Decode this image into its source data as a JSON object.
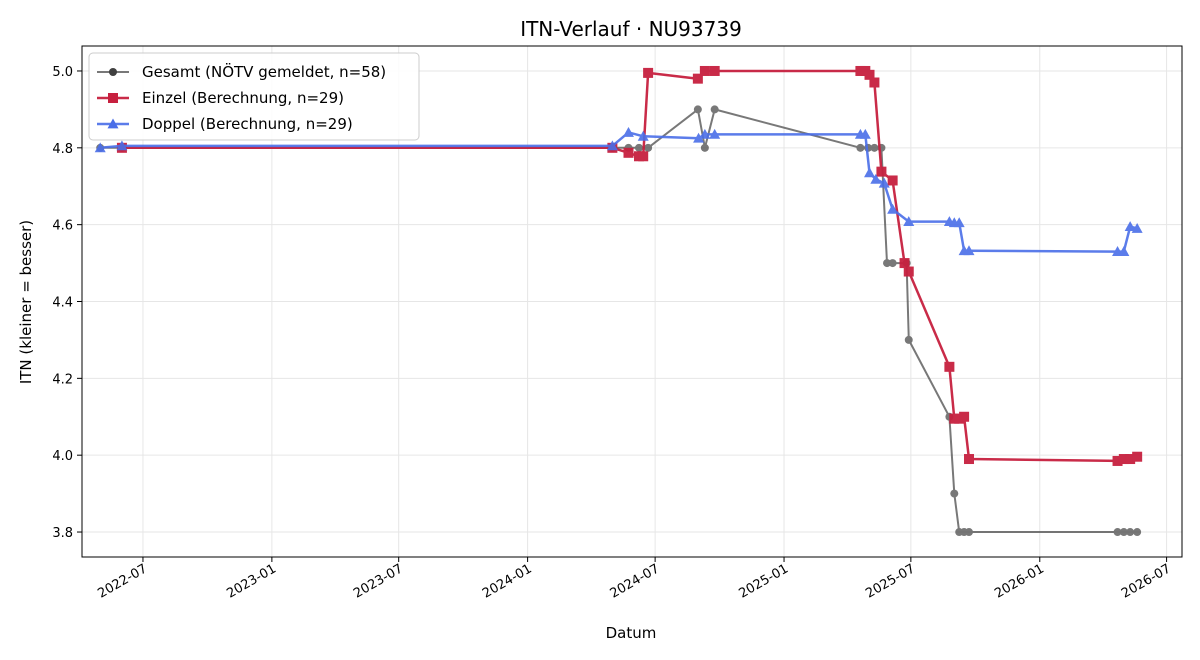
{
  "chart_data": {
    "type": "line",
    "title": "ITN-Verlauf · NU93739",
    "xlabel": "Datum",
    "ylabel": "ITN  (kleiner = besser)",
    "x_range": [
      "2022-04-05",
      "2026-07-23"
    ],
    "y_range": [
      3.735,
      5.065
    ],
    "x_ticks": [
      "2022-07",
      "2023-01",
      "2023-07",
      "2024-01",
      "2024-07",
      "2025-01",
      "2025-07",
      "2026-01",
      "2026-07"
    ],
    "y_ticks": [
      3.8,
      4.0,
      4.2,
      4.4,
      4.6,
      4.8,
      5.0
    ],
    "grid": true,
    "legend_position": "top-left",
    "series": [
      {
        "name": "Gesamt (NÖTV gemeldet, n=58)",
        "color": "#404040",
        "marker": "circle",
        "points": [
          [
            "2022-05-01",
            4.8
          ],
          [
            "2022-06-01",
            4.8
          ],
          [
            "2024-05-01",
            4.8
          ],
          [
            "2024-05-24",
            4.8
          ],
          [
            "2024-06-08",
            4.8
          ],
          [
            "2024-06-21",
            4.8
          ],
          [
            "2024-08-31",
            4.9
          ],
          [
            "2024-09-10",
            4.8
          ],
          [
            "2024-09-24",
            4.9
          ],
          [
            "2025-04-20",
            4.8
          ],
          [
            "2025-05-01",
            4.8
          ],
          [
            "2025-05-10",
            4.8
          ],
          [
            "2025-05-20",
            4.8
          ],
          [
            "2025-05-28",
            4.5
          ],
          [
            "2025-06-05",
            4.5
          ],
          [
            "2025-06-25",
            4.5
          ],
          [
            "2025-06-28",
            4.3
          ],
          [
            "2025-08-25",
            4.1
          ],
          [
            "2025-09-01",
            3.9
          ],
          [
            "2025-09-08",
            3.8
          ],
          [
            "2025-09-15",
            3.8
          ],
          [
            "2025-09-22",
            3.8
          ],
          [
            "2026-04-22",
            3.8
          ],
          [
            "2026-05-01",
            3.8
          ],
          [
            "2026-05-10",
            3.8
          ],
          [
            "2026-05-20",
            3.8
          ]
        ]
      },
      {
        "name": "Einzel (Berechnung, n=29)",
        "color": "#c7203f",
        "marker": "square",
        "points": [
          [
            "2022-06-01",
            4.8
          ],
          [
            "2024-05-01",
            4.8
          ],
          [
            "2024-05-24",
            4.787
          ],
          [
            "2024-06-08",
            4.778
          ],
          [
            "2024-06-14",
            4.778
          ],
          [
            "2024-06-21",
            4.995
          ],
          [
            "2024-08-31",
            4.98
          ],
          [
            "2024-09-10",
            5.0
          ],
          [
            "2024-09-24",
            5.0
          ],
          [
            "2025-04-20",
            5.0
          ],
          [
            "2025-04-27",
            5.0
          ],
          [
            "2025-05-03",
            4.99
          ],
          [
            "2025-05-10",
            4.97
          ],
          [
            "2025-05-20",
            4.738
          ],
          [
            "2025-06-05",
            4.715
          ],
          [
            "2025-06-22",
            4.5
          ],
          [
            "2025-06-28",
            4.478
          ],
          [
            "2025-08-25",
            4.23
          ],
          [
            "2025-09-01",
            4.095
          ],
          [
            "2025-09-08",
            4.095
          ],
          [
            "2025-09-15",
            4.1
          ],
          [
            "2025-09-22",
            3.99
          ],
          [
            "2026-04-22",
            3.985
          ],
          [
            "2026-05-01",
            3.99
          ],
          [
            "2026-05-10",
            3.99
          ],
          [
            "2026-05-20",
            3.996
          ]
        ]
      },
      {
        "name": "Doppel (Berechnung, n=29)",
        "color": "#4a6ee8",
        "marker": "triangle",
        "points": [
          [
            "2022-05-01",
            4.8
          ],
          [
            "2022-06-01",
            4.805
          ],
          [
            "2024-05-01",
            4.805
          ],
          [
            "2024-05-24",
            4.84
          ],
          [
            "2024-06-14",
            4.83
          ],
          [
            "2024-09-01",
            4.825
          ],
          [
            "2024-09-10",
            4.835
          ],
          [
            "2024-09-24",
            4.835
          ],
          [
            "2025-04-20",
            4.835
          ],
          [
            "2025-04-27",
            4.835
          ],
          [
            "2025-05-03",
            4.735
          ],
          [
            "2025-05-12",
            4.718
          ],
          [
            "2025-05-24",
            4.708
          ],
          [
            "2025-06-05",
            4.64
          ],
          [
            "2025-06-28",
            4.608
          ],
          [
            "2025-08-25",
            4.608
          ],
          [
            "2025-09-01",
            4.605
          ],
          [
            "2025-09-08",
            4.605
          ],
          [
            "2025-09-15",
            4.532
          ],
          [
            "2025-09-22",
            4.532
          ],
          [
            "2026-04-22",
            4.53
          ],
          [
            "2026-05-01",
            4.53
          ],
          [
            "2026-05-10",
            4.595
          ],
          [
            "2026-05-20",
            4.59
          ]
        ]
      }
    ]
  }
}
